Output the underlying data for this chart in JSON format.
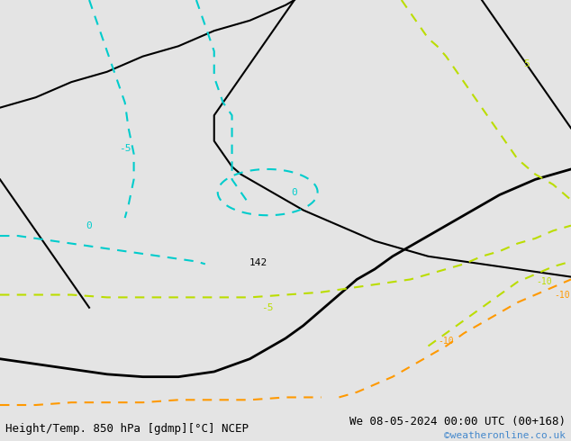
{
  "title_left": "Height/Temp. 850 hPa [gdmp][°C] NCEP",
  "title_right": "We 08-05-2024 00:00 UTC (00+168)",
  "credit": "©weatheronline.co.uk",
  "background_color": "#e4e4e4",
  "land_color_green": "#b5e085",
  "land_color_gray": "#c8c8c8",
  "font_family": "monospace",
  "title_fontsize": 9,
  "credit_fontsize": 8,
  "credit_color": "#4488cc",
  "lon_min": -20,
  "lon_max": 12,
  "lat_min": 47,
  "lat_max": 63
}
